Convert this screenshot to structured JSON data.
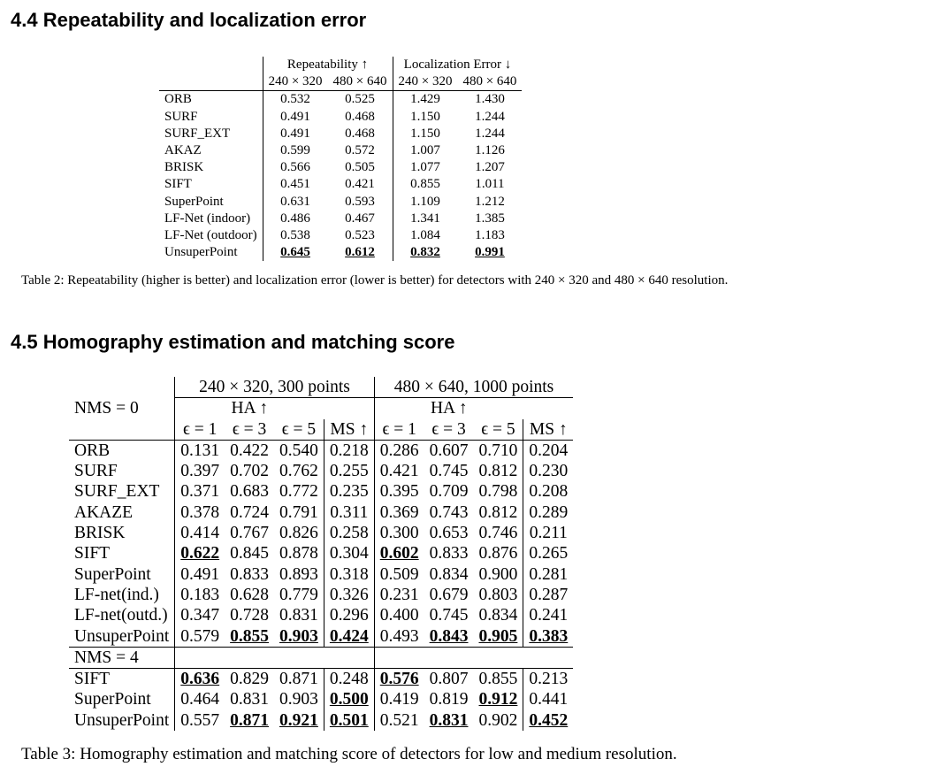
{
  "section_44": "4.4 Repeatability and localization error",
  "section_45": "4.5 Homography estimation and matching score",
  "table2": {
    "group1": "Repeatability ↑",
    "group2": "Localization Error ↓",
    "res1": "240 × 320",
    "res2": "480 × 640",
    "rows": [
      {
        "name": "ORB",
        "v": [
          "0.532",
          "0.525",
          "1.429",
          "1.430"
        ],
        "b": []
      },
      {
        "name": "SURF",
        "v": [
          "0.491",
          "0.468",
          "1.150",
          "1.244"
        ],
        "b": []
      },
      {
        "name": "SURF_EXT",
        "v": [
          "0.491",
          "0.468",
          "1.150",
          "1.244"
        ],
        "b": []
      },
      {
        "name": "AKAZ",
        "v": [
          "0.599",
          "0.572",
          "1.007",
          "1.126"
        ],
        "b": []
      },
      {
        "name": "BRISK",
        "v": [
          "0.566",
          "0.505",
          "1.077",
          "1.207"
        ],
        "b": []
      },
      {
        "name": "SIFT",
        "v": [
          "0.451",
          "0.421",
          "0.855",
          "1.011"
        ],
        "b": []
      },
      {
        "name": "SuperPoint",
        "v": [
          "0.631",
          "0.593",
          "1.109",
          "1.212"
        ],
        "b": []
      },
      {
        "name": "LF-Net (indoor)",
        "v": [
          "0.486",
          "0.467",
          "1.341",
          "1.385"
        ],
        "b": []
      },
      {
        "name": "LF-Net (outdoor)",
        "v": [
          "0.538",
          "0.523",
          "1.084",
          "1.183"
        ],
        "b": []
      },
      {
        "name": "UnsuperPoint",
        "v": [
          "0.645",
          "0.612",
          "0.832",
          "0.991"
        ],
        "b": [
          0,
          1,
          2,
          3
        ]
      }
    ],
    "caption": "Table 2: Repeatability (higher is better) and localization error (lower is better) for detectors with 240 × 320 and 480 × 640 resolution."
  },
  "table3": {
    "group1": "240 × 320, 300 points",
    "group2": "480 × 640, 1000 points",
    "nms0": "NMS = 0",
    "nms4": "NMS = 4",
    "ha": "HA ↑",
    "eps": [
      "ϵ = 1",
      "ϵ = 3",
      "ϵ = 5"
    ],
    "ms": "MS ↑",
    "rows_nms0": [
      {
        "name": "ORB",
        "v": [
          "0.131",
          "0.422",
          "0.540",
          "0.218",
          "0.286",
          "0.607",
          "0.710",
          "0.204"
        ],
        "b": []
      },
      {
        "name": "SURF",
        "v": [
          "0.397",
          "0.702",
          "0.762",
          "0.255",
          "0.421",
          "0.745",
          "0.812",
          "0.230"
        ],
        "b": []
      },
      {
        "name": "SURF_EXT",
        "v": [
          "0.371",
          "0.683",
          "0.772",
          "0.235",
          "0.395",
          "0.709",
          "0.798",
          "0.208"
        ],
        "b": []
      },
      {
        "name": "AKAZE",
        "v": [
          "0.378",
          "0.724",
          "0.791",
          "0.311",
          "0.369",
          "0.743",
          "0.812",
          "0.289"
        ],
        "b": []
      },
      {
        "name": "BRISK",
        "v": [
          "0.414",
          "0.767",
          "0.826",
          "0.258",
          "0.300",
          "0.653",
          "0.746",
          "0.211"
        ],
        "b": []
      },
      {
        "name": "SIFT",
        "v": [
          "0.622",
          "0.845",
          "0.878",
          "0.304",
          "0.602",
          "0.833",
          "0.876",
          "0.265"
        ],
        "b": [
          0,
          4
        ]
      },
      {
        "name": "SuperPoint",
        "v": [
          "0.491",
          "0.833",
          "0.893",
          "0.318",
          "0.509",
          "0.834",
          "0.900",
          "0.281"
        ],
        "b": []
      },
      {
        "name": "LF-net(ind.)",
        "v": [
          "0.183",
          "0.628",
          "0.779",
          "0.326",
          "0.231",
          "0.679",
          "0.803",
          "0.287"
        ],
        "b": []
      },
      {
        "name": "LF-net(outd.)",
        "v": [
          "0.347",
          "0.728",
          "0.831",
          "0.296",
          "0.400",
          "0.745",
          "0.834",
          "0.241"
        ],
        "b": []
      },
      {
        "name": "UnsuperPoint",
        "v": [
          "0.579",
          "0.855",
          "0.903",
          "0.424",
          "0.493",
          "0.843",
          "0.905",
          "0.383"
        ],
        "b": [
          1,
          2,
          3,
          5,
          6,
          7
        ]
      }
    ],
    "rows_nms4": [
      {
        "name": "SIFT",
        "v": [
          "0.636",
          "0.829",
          "0.871",
          "0.248",
          "0.576",
          "0.807",
          "0.855",
          "0.213"
        ],
        "b": [
          0,
          4
        ]
      },
      {
        "name": "SuperPoint",
        "v": [
          "0.464",
          "0.831",
          "0.903",
          "0.500",
          "0.419",
          "0.819",
          "0.912",
          "0.441"
        ],
        "b": [
          3,
          6
        ]
      },
      {
        "name": "UnsuperPoint",
        "v": [
          "0.557",
          "0.871",
          "0.921",
          "0.501",
          "0.521",
          "0.831",
          "0.902",
          "0.452"
        ],
        "b": [
          1,
          2,
          3,
          5,
          7
        ]
      }
    ],
    "caption": "Table 3: Homography estimation and matching score of detectors for low and medium resolution."
  }
}
